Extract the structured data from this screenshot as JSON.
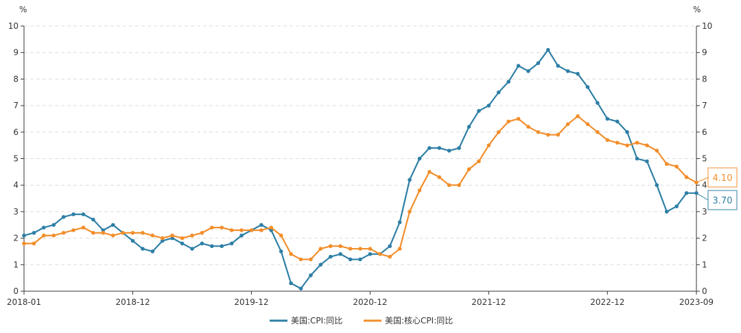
{
  "chart_data": {
    "type": "line",
    "y_unit_left": "%",
    "y_unit_right": "%",
    "ylim": [
      0,
      10
    ],
    "y_ticks": [
      "0",
      "1",
      "2",
      "3",
      "4",
      "5",
      "6",
      "7",
      "8",
      "9",
      "10"
    ],
    "x_tick_labels": [
      "2018-01",
      "2018-12",
      "2019-12",
      "2020-12",
      "2021-12",
      "2022-12",
      "2023-09"
    ],
    "x_tick_dates": [
      "2018-01",
      "2018-12",
      "2019-12",
      "2020-12",
      "2021-12",
      "2022-12",
      "2023-09"
    ],
    "grid": true,
    "legend_position": "bottom",
    "categories": [
      "2018-01",
      "2018-02",
      "2018-03",
      "2018-04",
      "2018-05",
      "2018-06",
      "2018-07",
      "2018-08",
      "2018-09",
      "2018-10",
      "2018-11",
      "2018-12",
      "2019-01",
      "2019-02",
      "2019-03",
      "2019-04",
      "2019-05",
      "2019-06",
      "2019-07",
      "2019-08",
      "2019-09",
      "2019-10",
      "2019-11",
      "2019-12",
      "2020-01",
      "2020-02",
      "2020-03",
      "2020-04",
      "2020-05",
      "2020-06",
      "2020-07",
      "2020-08",
      "2020-09",
      "2020-10",
      "2020-11",
      "2020-12",
      "2021-01",
      "2021-02",
      "2021-03",
      "2021-04",
      "2021-05",
      "2021-06",
      "2021-07",
      "2021-08",
      "2021-09",
      "2021-10",
      "2021-11",
      "2021-12",
      "2022-01",
      "2022-02",
      "2022-03",
      "2022-04",
      "2022-05",
      "2022-06",
      "2022-07",
      "2022-08",
      "2022-09",
      "2022-10",
      "2022-11",
      "2022-12",
      "2023-01",
      "2023-02",
      "2023-03",
      "2023-04",
      "2023-05",
      "2023-06",
      "2023-07",
      "2023-08",
      "2023-09"
    ],
    "series": [
      {
        "name": "美国:CPI:同比",
        "color": "#2E7FA6",
        "end_label": "3.70",
        "values": [
          2.1,
          2.2,
          2.4,
          2.5,
          2.8,
          2.9,
          2.9,
          2.7,
          2.3,
          2.5,
          2.2,
          1.9,
          1.6,
          1.5,
          1.9,
          2.0,
          1.8,
          1.6,
          1.8,
          1.7,
          1.7,
          1.8,
          2.1,
          2.3,
          2.5,
          2.3,
          1.5,
          0.3,
          0.1,
          0.6,
          1.0,
          1.3,
          1.4,
          1.2,
          1.2,
          1.4,
          1.4,
          1.7,
          2.6,
          4.2,
          5.0,
          5.4,
          5.4,
          5.3,
          5.4,
          6.2,
          6.8,
          7.0,
          7.5,
          7.9,
          8.5,
          8.3,
          8.6,
          9.1,
          8.5,
          8.3,
          8.2,
          7.7,
          7.1,
          6.5,
          6.4,
          6.0,
          5.0,
          4.9,
          4.0,
          3.0,
          3.2,
          3.7,
          3.7
        ]
      },
      {
        "name": "美国:核心CPI:同比",
        "color": "#F28E2B",
        "end_label": "4.10",
        "values": [
          1.8,
          1.8,
          2.1,
          2.1,
          2.2,
          2.3,
          2.4,
          2.2,
          2.2,
          2.1,
          2.2,
          2.2,
          2.2,
          2.1,
          2.0,
          2.1,
          2.0,
          2.1,
          2.2,
          2.4,
          2.4,
          2.3,
          2.3,
          2.3,
          2.3,
          2.4,
          2.1,
          1.4,
          1.2,
          1.2,
          1.6,
          1.7,
          1.7,
          1.6,
          1.6,
          1.6,
          1.4,
          1.3,
          1.6,
          3.0,
          3.8,
          4.5,
          4.3,
          4.0,
          4.0,
          4.6,
          4.9,
          5.5,
          6.0,
          6.4,
          6.5,
          6.2,
          6.0,
          5.9,
          5.9,
          6.3,
          6.6,
          6.3,
          6.0,
          5.7,
          5.6,
          5.5,
          5.6,
          5.5,
          5.3,
          4.8,
          4.7,
          4.3,
          4.1
        ]
      }
    ]
  }
}
